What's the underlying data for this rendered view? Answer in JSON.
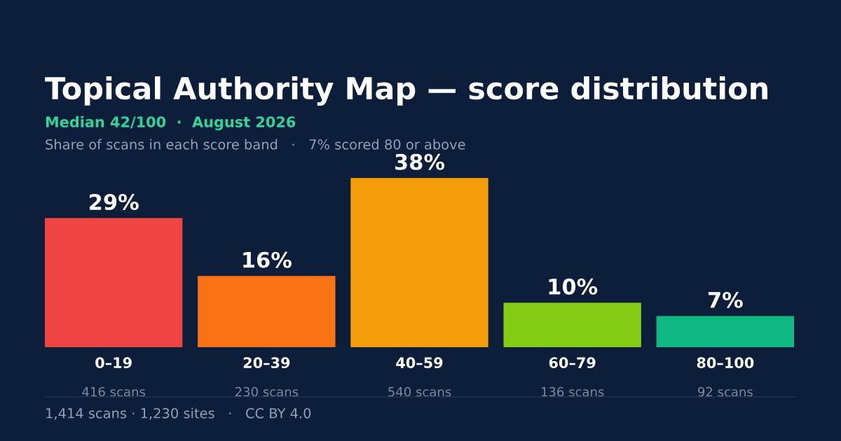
{
  "chart_data": {
    "type": "bar",
    "title": "Topical Authority Map — score distribution",
    "subtitle": "Median 42/100  ·  August 2026",
    "categories": [
      "0–19",
      "20–39",
      "40–59",
      "60–79",
      "80–100"
    ],
    "values": [
      29,
      16,
      38,
      10,
      7
    ],
    "colors": [
      "#ef4444",
      "#f97316",
      "#f59e0b",
      "#84cc16",
      "#10b981"
    ],
    "value_labels": [
      "29%",
      "16%",
      "38%",
      "10%",
      "7%"
    ],
    "annotations": [
      "Share of scans in each score band   ·   7% scored 80 or above",
      "416 scans",
      "230 scans",
      "540 scans",
      "136 scans",
      "92 scans",
      "1,414 scans · 1,230 sites   ·   CC BY 4.0"
    ],
    "grid": false,
    "legend": false,
    "tick_labels": "x"
  }
}
